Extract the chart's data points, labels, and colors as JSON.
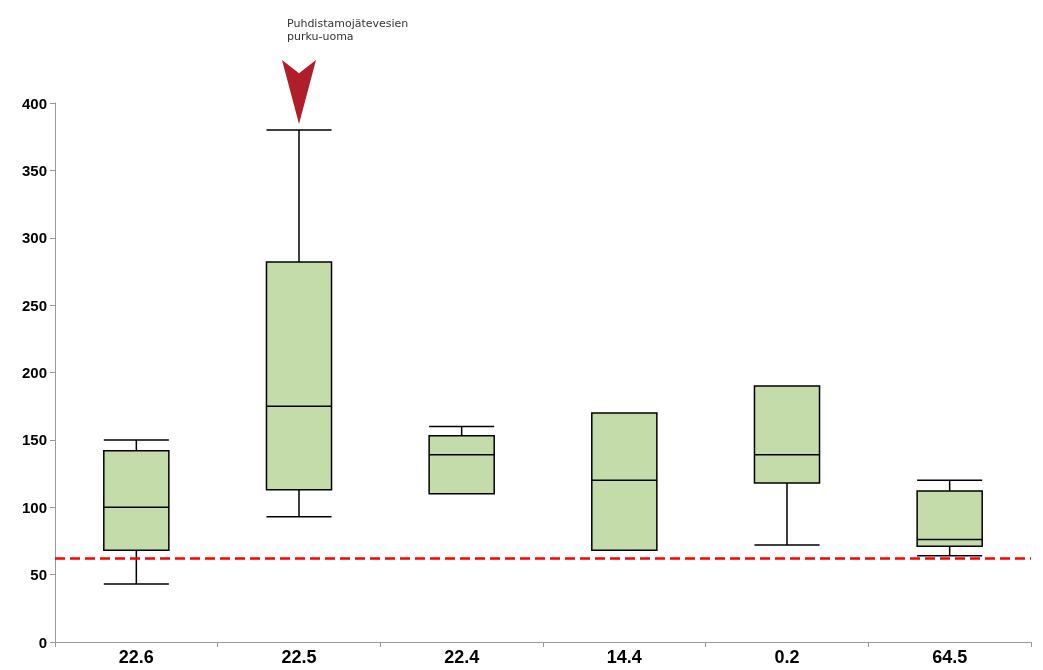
{
  "chart_data": {
    "type": "box",
    "categories": [
      "22.6",
      "22.5",
      "22.4",
      "14.4",
      "0.2",
      "64.5"
    ],
    "series": [
      {
        "color": "#c4dcaa",
        "boxes": [
          {
            "low": 43,
            "q1": 68,
            "median": 100,
            "q3": 142,
            "high": 150
          },
          {
            "low": 93,
            "q1": 113,
            "median": 175,
            "q3": 282,
            "high": 380
          },
          {
            "low": 110,
            "q1": 110,
            "median": 139,
            "q3": 153,
            "high": 160
          },
          {
            "low": 68,
            "q1": 68,
            "median": 120,
            "q3": 170,
            "high": 170
          },
          {
            "low": 72,
            "q1": 118,
            "median": 139,
            "q3": 190,
            "high": 190
          },
          {
            "low": 64,
            "q1": 71,
            "median": 76,
            "q3": 112,
            "high": 120
          }
        ]
      }
    ],
    "ylim": [
      0,
      400
    ],
    "yticks": [
      0,
      50,
      100,
      150,
      200,
      250,
      300,
      350,
      400
    ],
    "grid": false,
    "ref_lines": [
      {
        "axis": "y",
        "value": 62,
        "color": "#ff0000",
        "line_style": "dashed"
      }
    ],
    "annotations": [
      "Puhdistamojätevesien\npurku-uoma"
    ]
  }
}
